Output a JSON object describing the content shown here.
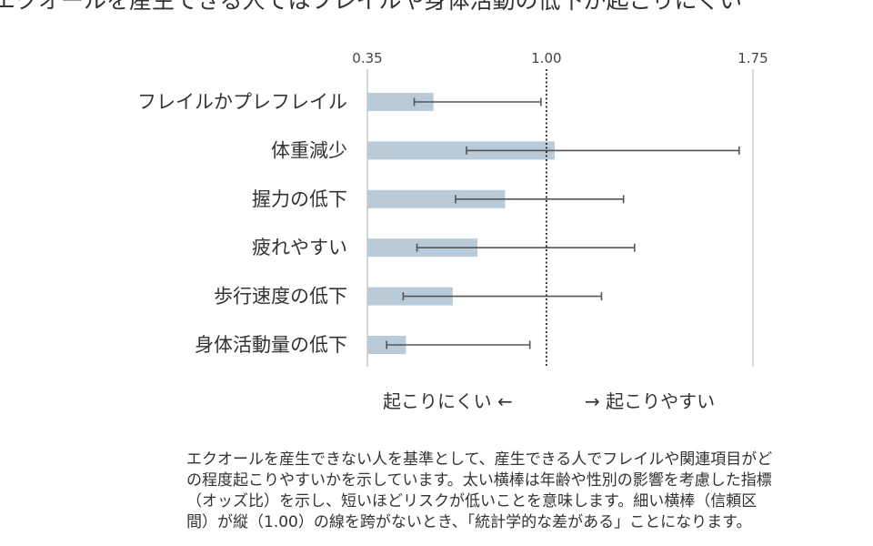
{
  "title": "エクオールを産生できる人ではフレイルや身体活動の低下が起こりにくい",
  "chart_data": {
    "type": "bar",
    "orientation": "horizontal",
    "error_bars": true,
    "categories": [
      "フレイルかプレフレイル",
      "体重減少",
      "握力の低下",
      "疲れやすい",
      "歩行速度の低下",
      "身体活動量の低下"
    ],
    "values": [
      0.59,
      1.03,
      0.85,
      0.75,
      0.66,
      0.49
    ],
    "ci_low": [
      0.52,
      0.71,
      0.67,
      0.53,
      0.48,
      0.42
    ],
    "ci_high": [
      0.98,
      1.7,
      1.28,
      1.32,
      1.2,
      0.94
    ],
    "xaxis_ticks": [
      0.35,
      1.0,
      1.75
    ],
    "xaxis_tick_labels": [
      "0.35",
      "1.00",
      "1.75"
    ],
    "xlim": [
      0.35,
      1.75
    ],
    "reference_value": 1.0,
    "reference_line_style": "dotted",
    "bar_color": "#b9cad9",
    "error_bar_color": "#555555",
    "direction_labels": {
      "left": "起こりにくい ←",
      "right": "→ 起こりやすい"
    }
  },
  "explanation": "エクオールを産生できない人を基準として、産生できる人でフレイルや関連項目がどの程度起こりやすいかを示しています。太い横棒は年齢や性別の影響を考慮した指標（オッズ比）を示し、短いほどリスクが低いことを意味します。細い横棒（信頼区間）が縦（1.00）の線を跨がないとき、「統計学的な差がある」ことになります。"
}
